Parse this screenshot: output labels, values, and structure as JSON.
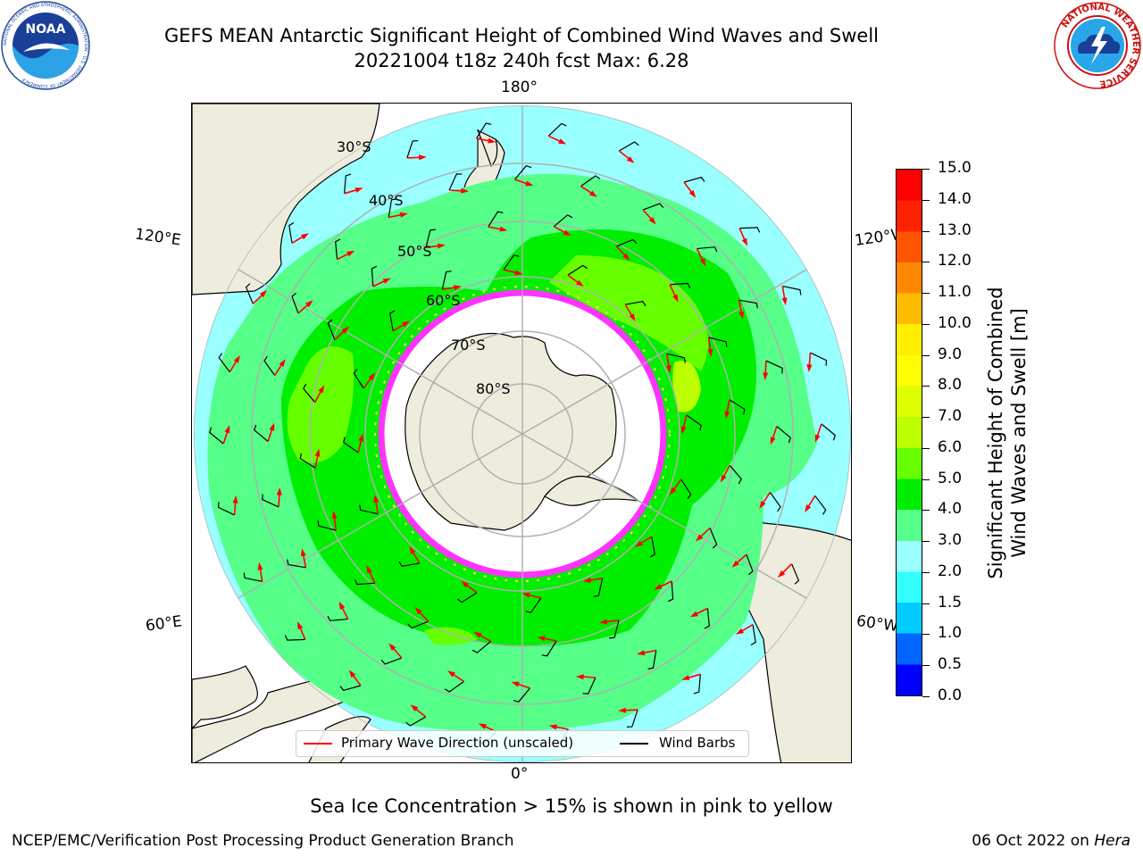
{
  "header": {
    "title_line1": "GEFS MEAN Antarctic Significant Height of Combined Wind Waves and Swell",
    "title_line2": "20221004 t18z 240h fcst   Max: 6.28"
  },
  "map": {
    "projection": "south-polar stereographic",
    "lon_labels": {
      "top": "180°",
      "bottom": "0°",
      "left_upper": "120°E",
      "left_lower": "60°E",
      "right_upper": "120°W",
      "right_lower": "60°W"
    },
    "lat_labels": [
      "30°S",
      "40°S",
      "50°S",
      "60°S",
      "70°S",
      "80°S"
    ],
    "colors": {
      "land": "#eeecdd",
      "ocean_min": "#99ffff",
      "ice_edge": "#ff33ff",
      "wave_arrow": "#ff0000",
      "wind_barb": "#000000"
    }
  },
  "colorbar": {
    "title_line1": "Significant Height of Combined",
    "title_line2": "Wind Waves and Swell [m]",
    "ticks": [
      "0.0",
      "0.5",
      "1.0",
      "1.5",
      "2.0",
      "3.0",
      "4.0",
      "5.0",
      "6.0",
      "7.0",
      "8.0",
      "9.0",
      "10.0",
      "11.0",
      "12.0",
      "13.0",
      "14.0",
      "15.0"
    ],
    "colors": [
      "#0000ff",
      "#0066ff",
      "#00ccff",
      "#33ffff",
      "#99ffff",
      "#55ff88",
      "#00ee00",
      "#66ff00",
      "#bbff00",
      "#ddff00",
      "#ffff00",
      "#ffee00",
      "#ffbb00",
      "#ff8800",
      "#ff5500",
      "#ff2200",
      "#ff0000"
    ]
  },
  "legend": {
    "item1": "Primary Wave Direction (unscaled)",
    "item2": "Wind Barbs"
  },
  "note": "Sea Ice Concentration > 15% is shown in pink to yellow",
  "footer": {
    "left": "NCEP/EMC/Verification Post Processing Product Generation Branch",
    "date": "06 Oct 2022 on ",
    "machine": "Hera"
  },
  "logos": {
    "noaa_text": "NOAA",
    "noaa_ring": "NATIONAL OCEANIC AND ATMOSPHERIC ADMINISTRATION · U.S. DEPARTMENT OF COMMERCE",
    "nws_ring": "NATIONAL WEATHER SERVICE"
  }
}
